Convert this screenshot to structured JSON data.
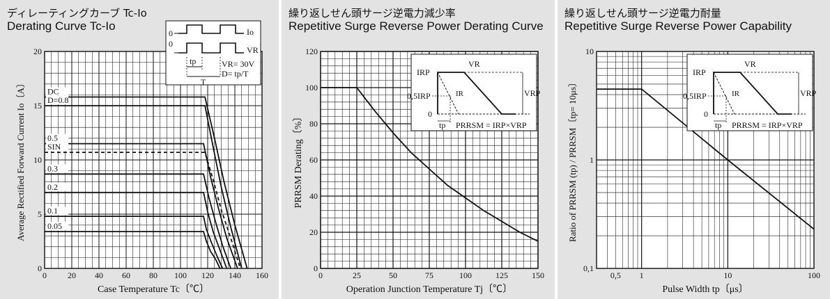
{
  "chart_data": [
    {
      "type": "line",
      "title_jp": "ディレーティングカーブ Tc-Io",
      "title": "Derating Curve Tc-Io",
      "xlabel": "Case Temperature  Tc〔℃〕",
      "ylabel": "Average Rectified Forward Current  Io〔A〕",
      "xlim": [
        0,
        160
      ],
      "ylim": [
        0,
        20
      ],
      "xticks": [
        "0",
        "20",
        "40",
        "60",
        "80",
        "100",
        "120",
        "140",
        "160"
      ],
      "yticks": [
        "0",
        "5",
        "10",
        "15",
        "20"
      ],
      "grid": true,
      "series": [
        {
          "name": "DC",
          "x": [
            0,
            118,
            125,
            132,
            140,
            149
          ],
          "y": [
            15.8,
            15.8,
            12,
            8,
            4,
            0
          ]
        },
        {
          "name": "D=0.8",
          "x": [
            0,
            118,
            124,
            130,
            137,
            145
          ],
          "y": [
            15.0,
            15.0,
            11.2,
            7.5,
            3.8,
            0
          ]
        },
        {
          "name": "0.5",
          "x": [
            0,
            117,
            122,
            128,
            134,
            142
          ],
          "y": [
            11.5,
            11.5,
            8.5,
            5.5,
            2.8,
            0
          ]
        },
        {
          "name": "SIN",
          "x": [
            0,
            118,
            124,
            130,
            137,
            144
          ],
          "y": [
            10.7,
            10.7,
            8.2,
            5.4,
            2.8,
            0
          ],
          "dashed": true
        },
        {
          "name": "0.3",
          "x": [
            0,
            117,
            121,
            126,
            131,
            137
          ],
          "y": [
            8.7,
            8.7,
            6.5,
            4.2,
            2.1,
            0
          ]
        },
        {
          "name": "0.2",
          "x": [
            0,
            117,
            120,
            124,
            129,
            134
          ],
          "y": [
            7.0,
            7.0,
            5.2,
            3.4,
            1.7,
            0
          ]
        },
        {
          "name": "0.1",
          "x": [
            0,
            117,
            119,
            123,
            127,
            131
          ],
          "y": [
            4.8,
            4.8,
            3.6,
            2.3,
            1.1,
            0
          ]
        },
        {
          "name": "0.05",
          "x": [
            0,
            117,
            119,
            122,
            126,
            129
          ],
          "y": [
            3.4,
            3.4,
            2.5,
            1.6,
            0.8,
            0
          ]
        }
      ],
      "series_labels": [
        "DC",
        "D=0.8",
        "0.5",
        "SIN",
        "0.3",
        "0.2",
        "0.1",
        "0.05"
      ],
      "inset": {
        "io": "Io",
        "vr": "VR",
        "zero1": "0",
        "zero2": "0",
        "vr_value": "VR= 30V",
        "duty": "D= tp/T",
        "tp": "tp",
        "T": "T"
      }
    },
    {
      "type": "line",
      "title_jp": "繰り返しせん頭サージ逆電力減少率",
      "title": "Repetitive Surge Reverse Power Derating Curve",
      "xlabel": "Operation Junction Temperature  Tj〔℃〕",
      "ylabel": "PRRSM Derating〔%〕",
      "xlim": [
        0,
        150
      ],
      "ylim": [
        0,
        120
      ],
      "xticks": [
        "0",
        "25",
        "50",
        "75",
        "100",
        "125",
        "150"
      ],
      "yticks": [
        "0",
        "20",
        "40",
        "60",
        "80",
        "100",
        "120"
      ],
      "grid": true,
      "series": [
        {
          "x": [
            0,
            25,
            37.5,
            50,
            62.5,
            75,
            87.5,
            100,
            112.5,
            125,
            137.5,
            150
          ],
          "y": [
            100,
            100,
            87,
            75,
            64,
            55,
            46,
            39,
            32,
            26,
            20,
            15
          ]
        }
      ],
      "inset": {
        "irp": "IRP",
        "half_irp": "0,5IRP",
        "zero": "0",
        "vr": "VR",
        "ir": "IR",
        "vrp": "VRP",
        "tp": "tp",
        "formula": "PRRSM = IRP×VRP"
      }
    },
    {
      "type": "line",
      "title_jp": "繰り返しせん頭サージ逆電力耐量",
      "title": "Repetitive Surge Reverse Power Capability",
      "xlabel": "Pulse Width  tp〔μs〕",
      "ylabel": "Ratio of PRRSM (tp) / PRRSM〔tp= 10μs〕",
      "x_scale": "log",
      "y_scale": "log",
      "xlim": [
        0.3,
        100
      ],
      "ylim": [
        0.1,
        10
      ],
      "xticks": [
        "0,5",
        "1",
        "10",
        "100"
      ],
      "yticks": [
        "0,1",
        "1",
        "10"
      ],
      "grid": true,
      "series": [
        {
          "x": [
            0.3,
            1,
            10,
            100
          ],
          "y": [
            4.5,
            4.5,
            1,
            0.23
          ]
        }
      ],
      "inset": {
        "irp": "IRP",
        "half_irp": "0,5IRP",
        "zero": "0",
        "vr": "VR",
        "ir": "IR",
        "vrp": "VRP",
        "tp": "tp",
        "formula": "PRRSM = IRP×VRP"
      }
    }
  ]
}
